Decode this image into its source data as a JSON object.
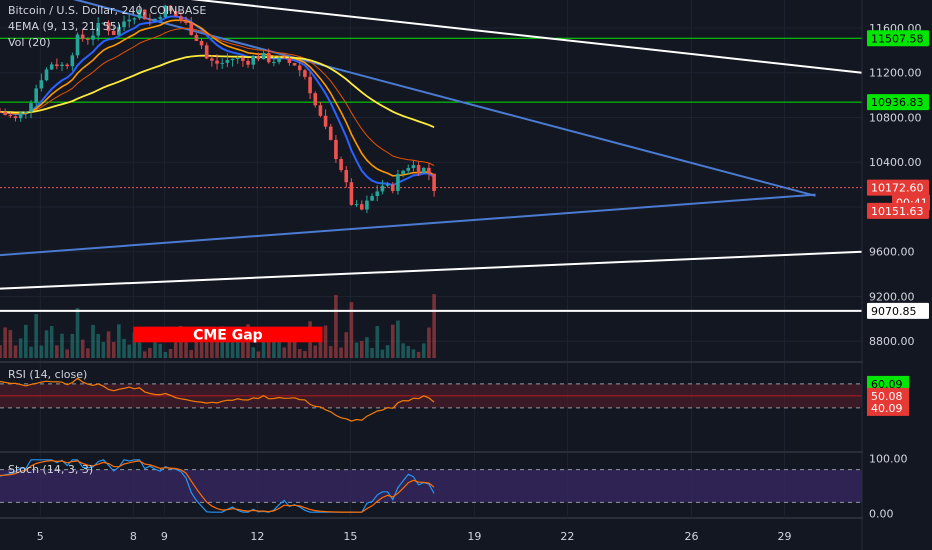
{
  "header": {
    "title": "Bitcoin / U.S. Dollar, 240, COINBASE",
    "ema_legend": "4EMA (9, 13, 21, 55)",
    "vol_legend": "Vol (20)"
  },
  "rsi": {
    "legend": "RSI (14, close)",
    "tags": [
      "60.09",
      "50.08",
      "40.09"
    ]
  },
  "stoch": {
    "legend": "Stoch (14, 3, 3)",
    "tags": [
      "100.00",
      "0.00"
    ]
  },
  "annotation": {
    "label": "CME Gap",
    "color": "#ff0000"
  },
  "colors": {
    "up": "#26a69a",
    "down": "#ef5350",
    "ema9": "#2962ff",
    "ema13": "#ff9800",
    "ema21": "#e65100",
    "ema55": "#ffeb3b",
    "trend_blue": "#4a7bd0",
    "white_line": "#ffffff",
    "green_line": "#00e600"
  },
  "price_axis": {
    "ticks": [
      "11600.00",
      "11200.00",
      "10800.00",
      "10400.00",
      "9600.00",
      "9200.00",
      "8800.00"
    ],
    "tags": [
      {
        "label": "11507.58",
        "value": 11507.58,
        "style": "green"
      },
      {
        "label": "10936.83",
        "value": 10936.83,
        "style": "green"
      },
      {
        "label": "10172.60",
        "value": 10172.6,
        "style": "red"
      },
      {
        "label": "00:41",
        "value": 10040,
        "style": "red"
      },
      {
        "label": "10151.63",
        "value": 9965,
        "style": "red"
      },
      {
        "label": "9070.85",
        "value": 9070.85,
        "style": "white"
      }
    ],
    "partial_label": "10"
  },
  "chart_data": {
    "type": "candlestick",
    "ylim": [
      8650,
      11850
    ],
    "xlim": [
      3.7,
      31.5
    ],
    "x_ticks": [
      "5",
      "8",
      "9",
      "12",
      "15",
      "19",
      "22",
      "26",
      "29"
    ],
    "x_tick_values": [
      5,
      8,
      9,
      12,
      15,
      19,
      22,
      26,
      29
    ],
    "horizontal_levels": [
      {
        "value": 11507.58,
        "color": "green"
      },
      {
        "value": 10936.83,
        "color": "green"
      },
      {
        "value": 10172.6,
        "color": "red"
      }
    ],
    "close_path": [
      [
        3.7,
        10850
      ],
      [
        4.2,
        10780
      ],
      [
        4.6,
        10900
      ],
      [
        5.0,
        11150
      ],
      [
        5.4,
        11300
      ],
      [
        5.8,
        11250
      ],
      [
        6.2,
        11500
      ],
      [
        6.6,
        11520
      ],
      [
        7.0,
        11650
      ],
      [
        7.4,
        11550
      ],
      [
        7.8,
        11700
      ],
      [
        8.2,
        11750
      ],
      [
        8.6,
        11650
      ],
      [
        9.0,
        11780
      ],
      [
        9.4,
        11700
      ],
      [
        9.8,
        11600
      ],
      [
        10.2,
        11450
      ],
      [
        10.4,
        11300
      ],
      [
        10.8,
        11280
      ],
      [
        11.2,
        11330
      ],
      [
        11.6,
        11300
      ],
      [
        12.0,
        11350
      ],
      [
        12.4,
        11320
      ],
      [
        12.8,
        11300
      ],
      [
        13.2,
        11280
      ],
      [
        13.6,
        11150
      ],
      [
        13.8,
        10950
      ],
      [
        14.1,
        10750
      ],
      [
        14.4,
        10550
      ],
      [
        14.7,
        10350
      ],
      [
        15.0,
        10050
      ],
      [
        15.3,
        9950
      ],
      [
        15.6,
        10050
      ],
      [
        16.0,
        10200
      ],
      [
        16.3,
        10150
      ],
      [
        16.6,
        10300
      ],
      [
        16.9,
        10380
      ],
      [
        17.2,
        10350
      ],
      [
        17.5,
        10330
      ],
      [
        17.7,
        10172.6
      ]
    ],
    "trendlines": [
      {
        "color": "white",
        "points": [
          [
            8.5,
            11900
          ],
          [
            31.5,
            11200
          ]
        ]
      },
      {
        "color": "blue",
        "points": [
          [
            5.5,
            11900
          ],
          [
            30.0,
            10100
          ]
        ]
      },
      {
        "color": "blue",
        "points": [
          [
            3.7,
            9570
          ],
          [
            30.0,
            10110
          ]
        ]
      },
      {
        "color": "white",
        "points": [
          [
            3.7,
            9270
          ],
          [
            31.5,
            9600
          ]
        ]
      },
      {
        "color": "white",
        "points": [
          [
            3.7,
            9070.85
          ],
          [
            31.5,
            9070.85
          ]
        ]
      }
    ],
    "cme_gap": {
      "x_start": 8.0,
      "x_end": 14.1,
      "y_low": 8790,
      "y_high": 8930
    },
    "rsi_levels": [
      60.09,
      50.08,
      40.09
    ],
    "stoch_levels": [
      100,
      0
    ]
  }
}
